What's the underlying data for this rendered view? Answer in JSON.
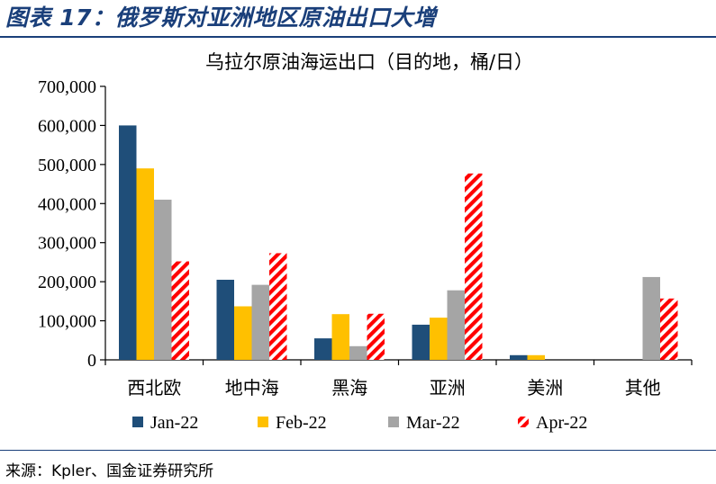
{
  "figure": {
    "title": "图表 17：俄罗斯对亚洲地区原油出口大增",
    "source": "来源：Kpler、国金证券研究所"
  },
  "chart_data": {
    "type": "bar",
    "title": "乌拉尔原油海运出口（目的地，桶/日）",
    "categories": [
      "西北欧",
      "地中海",
      "黑海",
      "亚洲",
      "美洲",
      "其他"
    ],
    "series": [
      {
        "name": "Jan-22",
        "values": [
          600000,
          205000,
          55000,
          90000,
          12000,
          0
        ],
        "color": "#1f4e79",
        "pattern": "solid"
      },
      {
        "name": "Feb-22",
        "values": [
          490000,
          137000,
          117000,
          108000,
          12000,
          0
        ],
        "color": "#ffc000",
        "pattern": "solid"
      },
      {
        "name": "Mar-22",
        "values": [
          410000,
          192000,
          35000,
          178000,
          0,
          212000
        ],
        "color": "#a5a5a5",
        "pattern": "solid"
      },
      {
        "name": "Apr-22",
        "values": [
          252000,
          273000,
          118000,
          477000,
          0,
          157000
        ],
        "color": "#ff0000",
        "pattern": "diagonal-stripes"
      }
    ],
    "ylim": [
      0,
      700000
    ],
    "yticks": [
      0,
      100000,
      200000,
      300000,
      400000,
      500000,
      600000,
      700000
    ],
    "ytick_labels": [
      "0",
      "100,000",
      "200,000",
      "300,000",
      "400,000",
      "500,000",
      "600,000",
      "700,000"
    ],
    "legend_position": "bottom",
    "grid": false
  }
}
